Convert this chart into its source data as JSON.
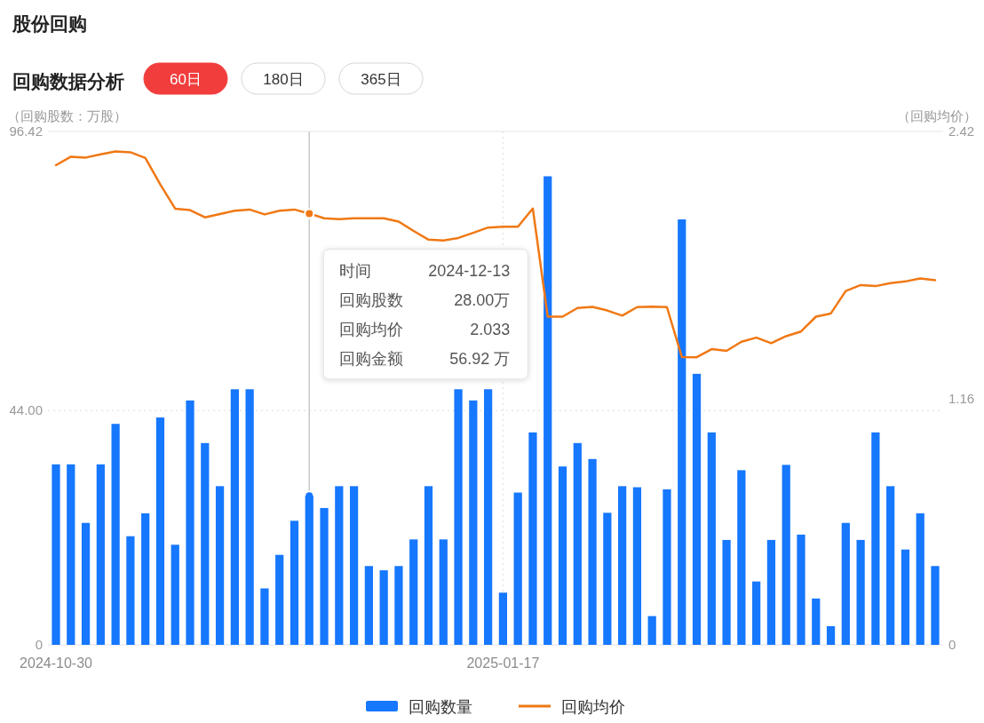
{
  "chart_data": {
    "type": "bar",
    "title": "股份回购",
    "subtitle": "回购数据分析",
    "ylabel": "（回购股数：万股）",
    "y2label": "（回购均价）",
    "categories": [
      "2024-10-30",
      null,
      null,
      null,
      null,
      null,
      null,
      null,
      null,
      null,
      null,
      null,
      null,
      null,
      null,
      null,
      null,
      null,
      null,
      null,
      null,
      null,
      null,
      null,
      null,
      null,
      null,
      null,
      null,
      null,
      "2025-01-17",
      null,
      null,
      null,
      null,
      null,
      null,
      null,
      null,
      null,
      null,
      null,
      null,
      null,
      null,
      null,
      null,
      null,
      null,
      null,
      null,
      null,
      null,
      null,
      null,
      null,
      null,
      null,
      null,
      null
    ],
    "series": [
      {
        "name": "回购数量",
        "color": "#1677ff",
        "values": [
          33.9,
          33.9,
          22.9,
          33.9,
          41.5,
          20.4,
          24.7,
          42.7,
          18.8,
          45.9,
          37.9,
          29.8,
          48.0,
          48.0,
          10.6,
          16.9,
          23.3,
          28.0,
          25.7,
          29.8,
          29.8,
          14.8,
          14.0,
          14.8,
          19.8,
          29.8,
          19.8,
          48.0,
          45.9,
          48.0,
          9.8,
          28.6,
          39.9,
          88.0,
          33.5,
          37.9,
          34.9,
          24.8,
          29.8,
          29.6,
          5.4,
          29.2,
          79.9,
          50.9,
          39.9,
          19.7,
          32.8,
          11.9,
          19.7,
          33.8,
          20.7,
          8.7,
          3.5,
          22.9,
          19.7,
          39.9,
          29.8,
          17.9,
          24.7,
          14.8
        ]
      },
      {
        "name": "回购均价",
        "type": "line",
        "axis": "y2",
        "color": "#f07814",
        "values": [
          2.261,
          2.301,
          2.297,
          2.312,
          2.326,
          2.322,
          2.295,
          2.17,
          2.056,
          2.049,
          2.015,
          2.031,
          2.046,
          2.052,
          2.029,
          2.046,
          2.052,
          2.033,
          2.011,
          2.007,
          2.011,
          2.011,
          2.011,
          1.995,
          1.951,
          1.91,
          1.906,
          1.918,
          1.942,
          1.967,
          1.971,
          1.971,
          2.057,
          1.547,
          1.547,
          1.588,
          1.593,
          1.576,
          1.552,
          1.592,
          1.594,
          1.592,
          1.357,
          1.356,
          1.394,
          1.386,
          1.429,
          1.448,
          1.422,
          1.455,
          1.477,
          1.547,
          1.562,
          1.668,
          1.696,
          1.691,
          1.705,
          1.713,
          1.727,
          1.719
        ]
      }
    ],
    "ylim": [
      0,
      96.42
    ],
    "yticks": [
      0,
      {
        "value": 44,
        "label": "44.00"
      },
      96.42
    ],
    "y2lim": [
      0,
      2.42
    ],
    "y2ticks": [
      0,
      1.16,
      2.42
    ],
    "grid": true,
    "legend": "bottom",
    "annotations": [
      "60日",
      "180日",
      "365日",
      "时间",
      "2024-12-13",
      "回购股数",
      "28.00万",
      "回购均价",
      "2.033",
      "回购金额",
      "56.92 万"
    ]
  }
}
